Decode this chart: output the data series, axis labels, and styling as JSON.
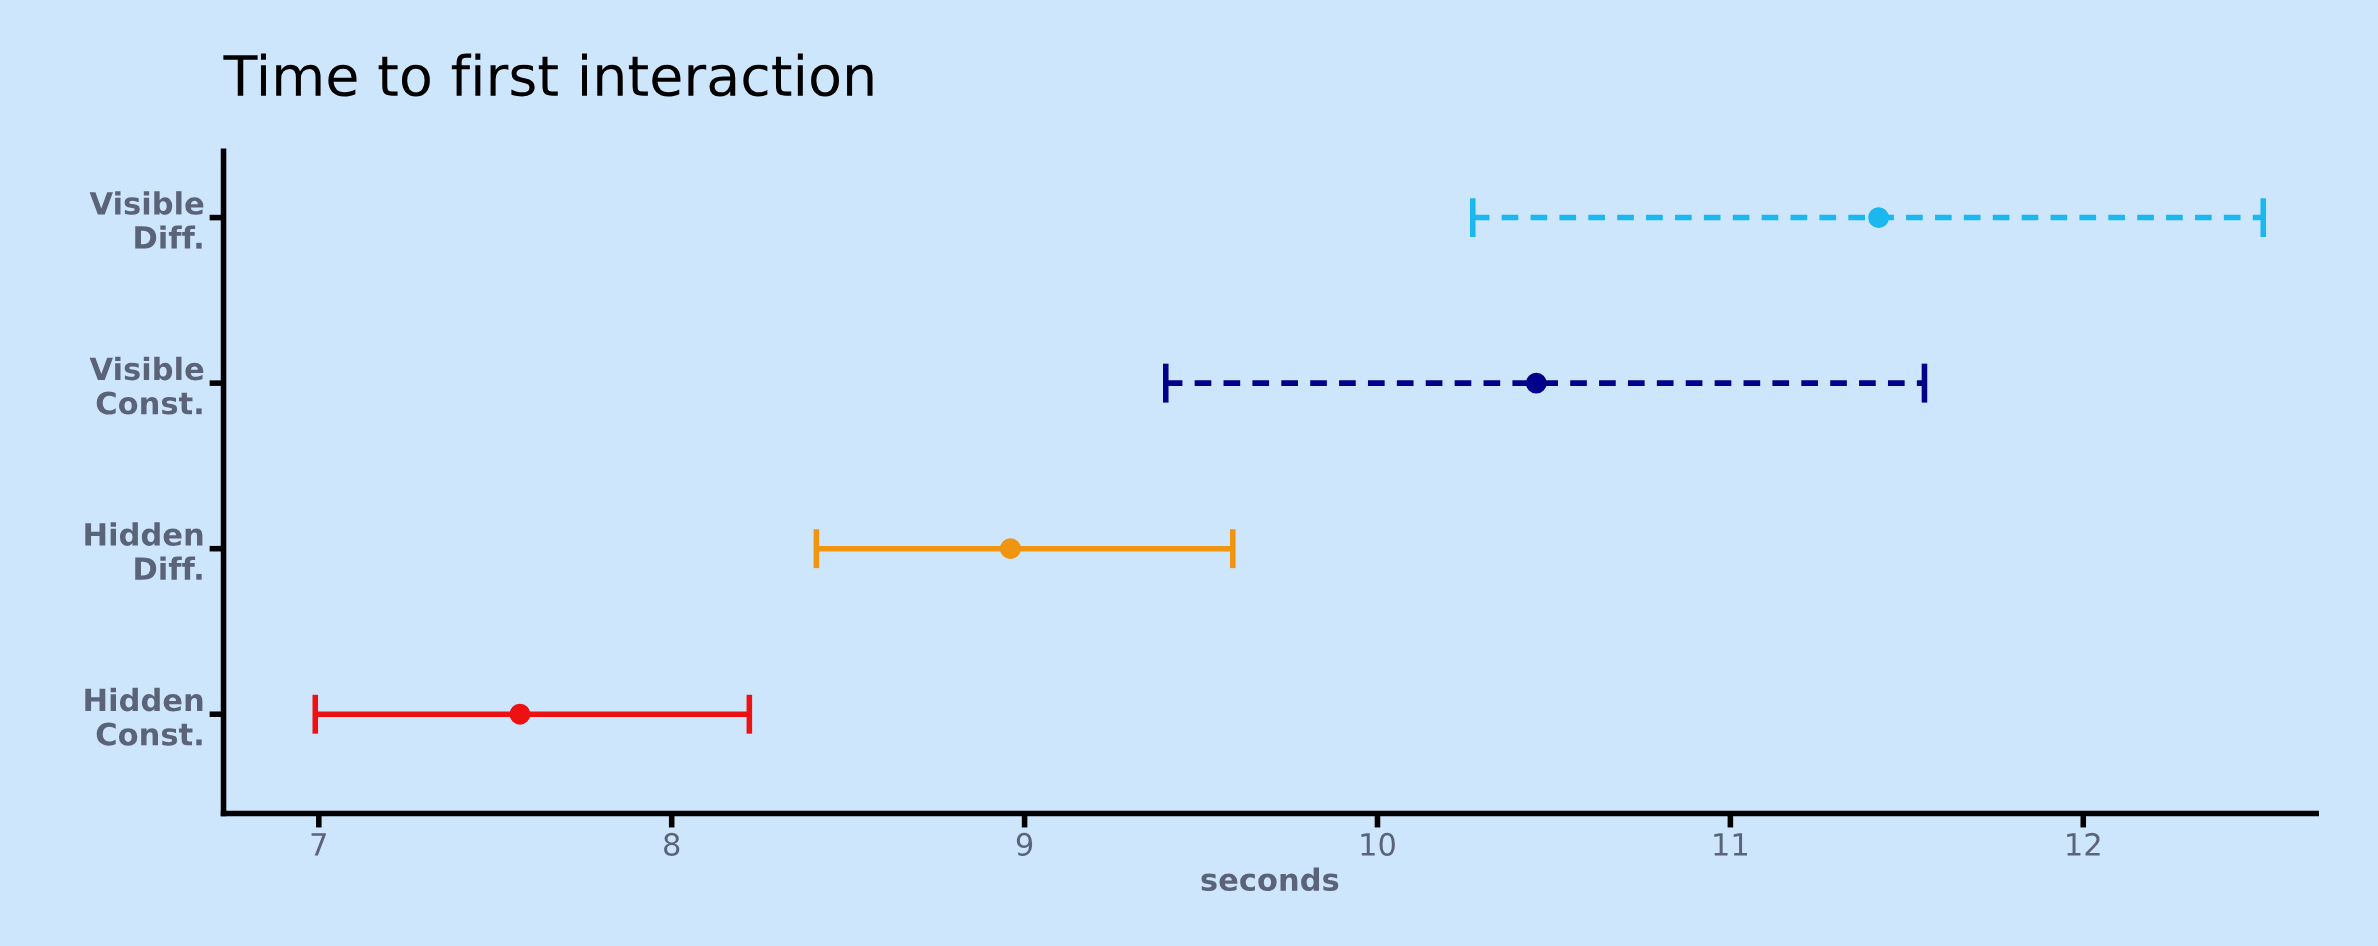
{
  "chart_data": {
    "type": "scatter",
    "orientation": "horizontal",
    "title": "Time to first interaction",
    "xlabel": "seconds",
    "categories": [
      "Visible\nDiff.",
      "Visible\nConst.",
      "Hidden\nDiff.",
      "Hidden\nConst."
    ],
    "series": [
      {
        "color": "#1ab8ee",
        "line_style": "dashed",
        "values": [
          11.42,
          null,
          null,
          null
        ],
        "errors": [
          [
            10.27,
            12.51
          ],
          null,
          null,
          null
        ]
      },
      {
        "color": "#00008b",
        "line_style": "dashed",
        "values": [
          null,
          10.45,
          null,
          null
        ],
        "errors": [
          null,
          [
            9.4,
            11.55
          ],
          null,
          null
        ]
      },
      {
        "color": "#f0950f",
        "line_style": "solid",
        "values": [
          null,
          null,
          8.96,
          null
        ],
        "errors": [
          null,
          null,
          [
            8.41,
            9.59
          ],
          null
        ]
      },
      {
        "color": "#ee1111",
        "line_style": "solid",
        "values": [
          null,
          null,
          null,
          7.57
        ],
        "errors": [
          null,
          null,
          null,
          [
            6.99,
            8.22
          ]
        ]
      }
    ],
    "xlim": [
      6.73,
      12.66
    ],
    "xticks": [
      7,
      8,
      9,
      10,
      11,
      12
    ],
    "grid": false,
    "legend": false,
    "marker": "circle"
  }
}
